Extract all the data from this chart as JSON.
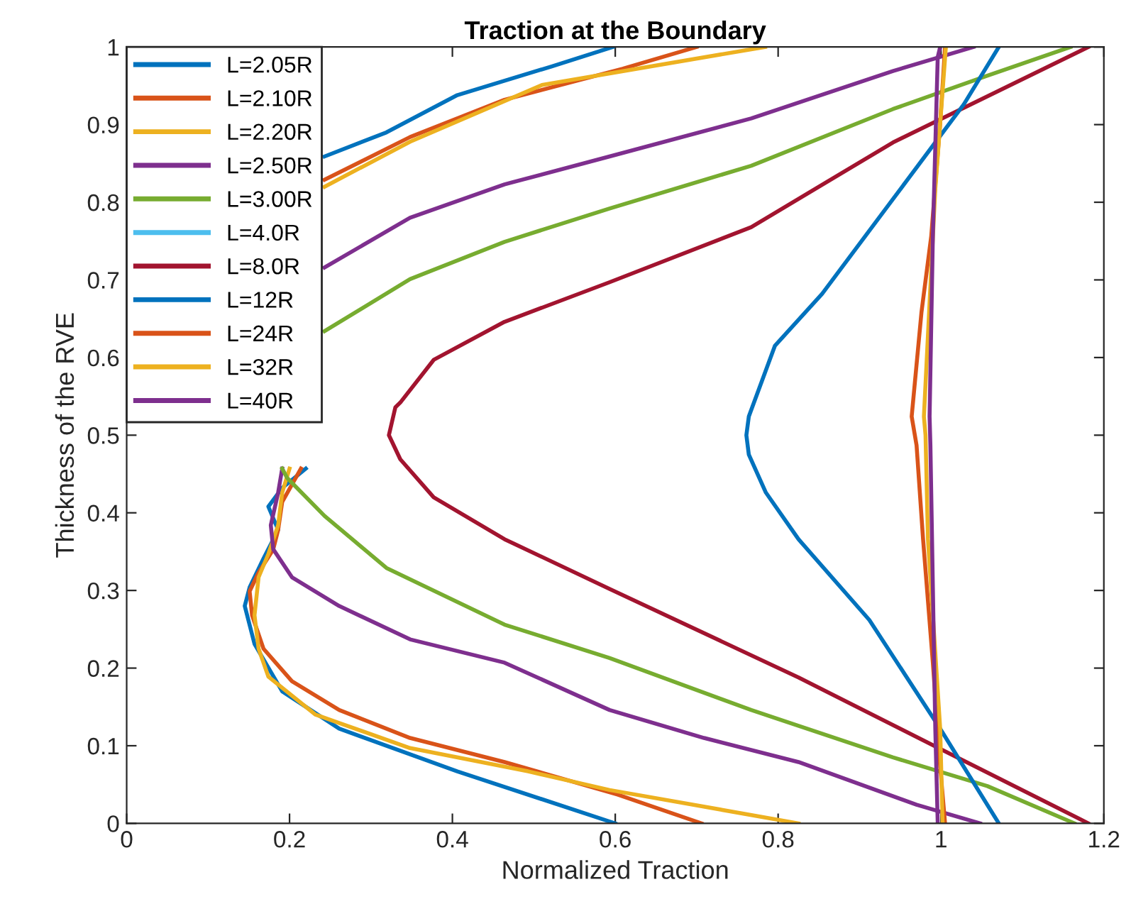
{
  "chart_data": {
    "type": "line",
    "title": "Traction at the Boundary",
    "xlabel": "Normalized Traction",
    "ylabel": "Thickness of the RVE",
    "xlim": [
      0,
      1.2
    ],
    "ylim": [
      0,
      1
    ],
    "xticks": [
      0,
      0.2,
      0.4,
      0.6,
      0.8,
      1,
      1.2
    ],
    "yticks": [
      0,
      0.1,
      0.2,
      0.3,
      0.4,
      0.5,
      0.6,
      0.7,
      0.8,
      0.9,
      1
    ],
    "grid": false,
    "legend": "top left",
    "marker": "none",
    "line_style": "solid",
    "series": [
      {
        "name": "L=2.05R",
        "color": "#0072bd",
        "x": [
          0.6,
          0.406,
          0.261,
          0.191,
          0.157,
          0.145,
          0.151,
          0.168,
          0.186,
          0.174,
          0.191,
          0.22,
          0.23,
          0.243,
          0.319,
          0.406,
          0.522,
          0.597
        ],
        "values": [
          0,
          0.067,
          0.122,
          0.17,
          0.231,
          0.28,
          0.304,
          0.341,
          0.378,
          0.408,
          0.432,
          0.457,
          null,
          0.859,
          0.89,
          0.938,
          0.975,
          1
        ]
      },
      {
        "name": "L=2.10R",
        "color": "#d95319",
        "x": [
          0.706,
          0.603,
          0.464,
          0.348,
          0.261,
          0.203,
          0.168,
          0.154,
          0.151,
          0.162,
          0.18,
          0.186,
          0.191,
          0.214,
          0.23,
          0.243,
          0.348,
          0.464,
          0.609,
          0.7
        ],
        "values": [
          0,
          0.037,
          0.079,
          0.11,
          0.146,
          0.183,
          0.225,
          0.268,
          0.299,
          0.323,
          0.353,
          0.378,
          0.414,
          0.457,
          null,
          0.829,
          0.884,
          0.932,
          0.972,
          1
        ]
      },
      {
        "name": "L=2.20R",
        "color": "#edb120",
        "x": [
          0.825,
          0.593,
          0.493,
          0.348,
          0.232,
          0.174,
          0.162,
          0.157,
          0.162,
          0.174,
          0.186,
          0.191,
          0.2,
          0.23,
          0.243,
          0.348,
          0.51,
          0.593,
          0.784
        ],
        "values": [
          0,
          0.043,
          0.067,
          0.097,
          0.14,
          0.189,
          0.225,
          0.268,
          0.317,
          0.347,
          0.384,
          0.426,
          0.457,
          null,
          0.82,
          0.878,
          0.951,
          0.966,
          1
        ]
      },
      {
        "name": "L=2.50R",
        "color": "#7e2f8e",
        "x": [
          1.048,
          0.97,
          0.825,
          0.709,
          0.593,
          0.464,
          0.348,
          0.261,
          0.203,
          0.18,
          0.177,
          0.186,
          0.191,
          0.23,
          0.243,
          0.348,
          0.464,
          0.593,
          0.767,
          0.941,
          1.04
        ],
        "values": [
          0,
          0.024,
          0.079,
          0.11,
          0.146,
          0.207,
          0.237,
          0.28,
          0.317,
          0.353,
          0.384,
          0.426,
          0.457,
          null,
          0.716,
          0.78,
          0.823,
          0.859,
          0.908,
          0.969,
          1
        ]
      },
      {
        "name": "L=3.00R",
        "color": "#77ac30",
        "x": [
          1.164,
          1.057,
          0.941,
          0.767,
          0.593,
          0.464,
          0.319,
          0.243,
          0.197,
          0.191,
          0.23,
          0.243,
          0.348,
          0.464,
          0.593,
          0.767,
          0.941,
          1.057,
          1.159
        ],
        "values": [
          0,
          0.048,
          0.085,
          0.146,
          0.213,
          0.256,
          0.329,
          0.396,
          0.445,
          0.457,
          null,
          0.634,
          0.701,
          0.749,
          0.792,
          0.847,
          0.92,
          0.963,
          1
        ]
      },
      {
        "name": "L=4.0R",
        "color": "#4dbeee",
        "x": [
          null
        ],
        "values": [
          null
        ]
      },
      {
        "name": "L=8.0R",
        "color": "#a2142f",
        "x": [
          1.181,
          0.997,
          0.825,
          0.593,
          0.464,
          0.377,
          0.336,
          0.322,
          0.33,
          0.336,
          0.377,
          0.464,
          0.593,
          0.767,
          0.941,
          1.181
        ],
        "values": [
          0,
          0.097,
          0.188,
          0.302,
          0.366,
          0.42,
          0.469,
          0.5,
          0.536,
          0.542,
          0.597,
          0.646,
          0.697,
          0.768,
          0.877,
          1
        ]
      },
      {
        "name": "L=12R",
        "color": "#0072bd",
        "x": [
          1.071,
          0.999,
          0.912,
          0.825,
          0.785,
          0.764,
          0.761,
          0.764,
          0.796,
          0.854,
          0.941,
          0.993,
          1.028,
          1.071
        ],
        "values": [
          0,
          0.122,
          0.262,
          0.366,
          0.426,
          0.475,
          0.5,
          0.524,
          0.615,
          0.682,
          0.804,
          0.877,
          0.926,
          1
        ]
      },
      {
        "name": "L=24R",
        "color": "#d95319",
        "x": [
          1.005,
          0.999,
          0.99,
          0.978,
          0.97,
          0.964,
          0.976,
          0.988,
          0.999,
          1.005
        ],
        "values": [
          0,
          0.073,
          0.207,
          0.366,
          0.487,
          0.524,
          0.658,
          0.756,
          0.902,
          1
        ]
      },
      {
        "name": "L=32R",
        "color": "#edb120",
        "x": [
          1.002,
          0.999,
          0.984,
          0.981,
          0.979,
          0.993,
          1.006
        ],
        "values": [
          0,
          0.122,
          0.366,
          0.5,
          0.524,
          0.817,
          1
        ]
      },
      {
        "name": "L=40R",
        "color": "#7e2f8e",
        "x": [
          0.996,
          0.993,
          0.99,
          0.987,
          0.986,
          0.99,
          0.996,
          0.999
        ],
        "values": [
          0,
          0.122,
          0.305,
          0.487,
          0.524,
          0.756,
          0.987,
          1
        ]
      }
    ]
  }
}
